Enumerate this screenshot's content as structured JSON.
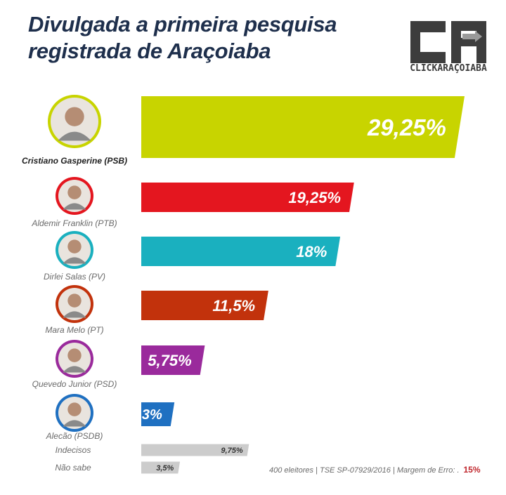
{
  "header": {
    "title_line1": "Divulgada  a primeira pesquisa",
    "title_line2": "registrada de Araçoiaba",
    "logo_text": "CLICKARAÇOIABA"
  },
  "footer": {
    "sample": "400 eleitores |",
    "tse": "TSE SP-07929/2016 |",
    "margin_label": "Margem de Erro: .",
    "margin_value": "15%"
  },
  "colors": {
    "title": "#1e2f4c",
    "cristiano": "#c8d400",
    "aldemir": "#e4161f",
    "dirlei": "#1ab0bf",
    "mara": "#c2320c",
    "quevedo": "#9a2a9c",
    "alecao": "#1f70c1",
    "minor": "#cccccc"
  },
  "chart_data": {
    "type": "bar",
    "orientation": "horizontal",
    "categories": [
      "Cristiano Gasperine (PSB)",
      "Aldemir Franklin (PTB)",
      "Dirlei Salas (PV)",
      "Mara Melo (PT)",
      "Quevedo Junior (PSD)",
      "Alecão (PSDB)",
      "Indecisos",
      "Não sabe"
    ],
    "values": [
      29.25,
      19.25,
      18,
      11.5,
      5.75,
      3,
      9.75,
      3.5
    ],
    "value_labels": [
      "29,25%",
      "19,25%",
      "18%",
      "11,5%",
      "5,75%",
      "3%",
      "9,75%",
      "3,5%"
    ],
    "bar_colors": [
      "#c8d400",
      "#e4161f",
      "#1ab0bf",
      "#c2320c",
      "#9a2a9c",
      "#1f70c1",
      "#cccccc",
      "#cccccc"
    ],
    "has_photo": [
      true,
      true,
      true,
      true,
      true,
      true,
      false,
      false
    ],
    "xlim": [
      0,
      30
    ],
    "grid": false,
    "legend": "none"
  }
}
